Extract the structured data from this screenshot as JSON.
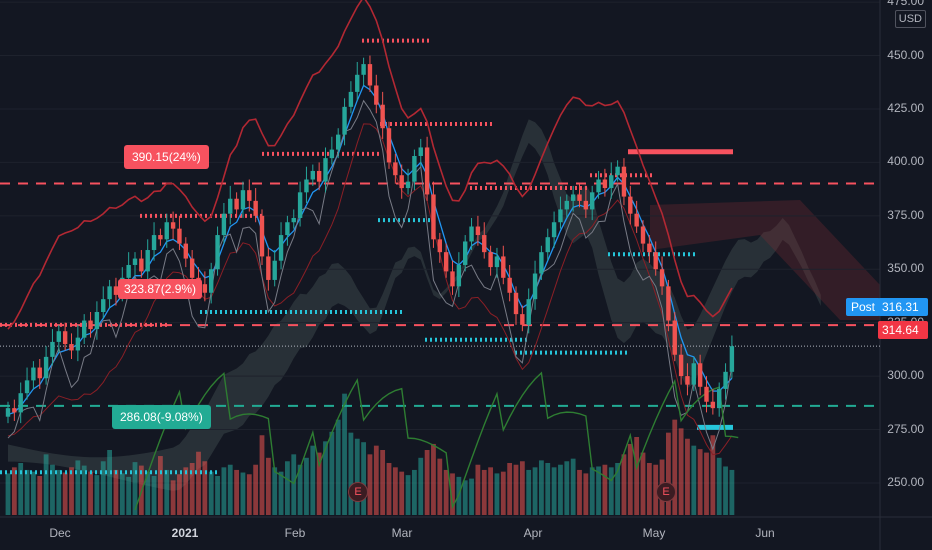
{
  "chart_data": {
    "type": "candlestick",
    "currency": "USD",
    "ylim": [
      235,
      476
    ],
    "y_ticks": [
      "250.00",
      "275.00",
      "300.00",
      "325.00",
      "350.00",
      "375.00",
      "400.00",
      "425.00",
      "450.00",
      "475.00"
    ],
    "x_ticks": [
      {
        "label": "Dec",
        "major": false
      },
      {
        "label": "2021",
        "major": true
      },
      {
        "label": "Feb",
        "major": false
      },
      {
        "label": "Mar",
        "major": false
      },
      {
        "label": "Apr",
        "major": false
      },
      {
        "label": "May",
        "major": false
      },
      {
        "label": "Jun",
        "major": false
      }
    ],
    "price_labels": {
      "post_label": "Post",
      "post_value": "316.31",
      "last_value": "314.64"
    },
    "annotations": {
      "upper_target": "390.15(24%)",
      "mid_target": "323.87(2.9%)",
      "lower_target": "286.08(-9.08%)",
      "earnings_marker": "E"
    },
    "horizontal_levels": [
      390.15,
      323.87,
      316.31,
      286.08
    ],
    "close_series": [
      285,
      283,
      292,
      298,
      304,
      299,
      309,
      316,
      321,
      315,
      312,
      318,
      326,
      322,
      330,
      336,
      342,
      338,
      346,
      352,
      355,
      349,
      359,
      366,
      364,
      372,
      369,
      362,
      355,
      346,
      343,
      339,
      350,
      366,
      376,
      383,
      378,
      387,
      382,
      375,
      356,
      345,
      354,
      366,
      372,
      374,
      386,
      392,
      396,
      391,
      402,
      406,
      413,
      426,
      433,
      441,
      446,
      436,
      427,
      416,
      400,
      394,
      388,
      391,
      403,
      407,
      385,
      364,
      358,
      349,
      342,
      352,
      363,
      370,
      366,
      358,
      351,
      356,
      346,
      339,
      329,
      324,
      336,
      348,
      358,
      365,
      372,
      378,
      382,
      385,
      382,
      378,
      386,
      392,
      388,
      394,
      398,
      384,
      376,
      370,
      362,
      358,
      350,
      342,
      326,
      310,
      300,
      296,
      306,
      295,
      288,
      285,
      294,
      302,
      314
    ],
    "volume_series": [
      48,
      55,
      60,
      52,
      50,
      45,
      70,
      58,
      52,
      49,
      55,
      63,
      57,
      50,
      46,
      62,
      75,
      52,
      48,
      44,
      61,
      57,
      50,
      45,
      68,
      52,
      40,
      47,
      55,
      60,
      73,
      62,
      50,
      45,
      55,
      58,
      52,
      49,
      47,
      58,
      92,
      66,
      55,
      50,
      62,
      70,
      58,
      66,
      80,
      72,
      85,
      96,
      110,
      140,
      95,
      88,
      84,
      70,
      80,
      75,
      60,
      55,
      50,
      46,
      52,
      66,
      75,
      82,
      65,
      52,
      48,
      44,
      40,
      42,
      58,
      52,
      55,
      48,
      50,
      60,
      58,
      62,
      52,
      55,
      63,
      60,
      55,
      58,
      62,
      65,
      52,
      48,
      55,
      56,
      58,
      55,
      60,
      70,
      82,
      90,
      72,
      60,
      58,
      64,
      95,
      110,
      100,
      88,
      80,
      76,
      72,
      92,
      66,
      56,
      52
    ],
    "ma_blue": [
      282,
      283,
      286,
      290,
      294,
      296,
      301,
      306,
      311,
      312,
      313,
      315,
      319,
      320,
      323,
      327,
      332,
      334,
      338,
      343,
      347,
      347,
      351,
      356,
      358,
      363,
      364,
      362,
      359,
      354,
      350,
      346,
      347,
      354,
      362,
      370,
      372,
      378,
      379,
      377,
      368,
      360,
      358,
      361,
      365,
      368,
      374,
      380,
      386,
      388,
      393,
      398,
      404,
      413,
      421,
      429,
      436,
      434,
      430,
      423,
      413,
      405,
      397,
      394,
      397,
      400,
      394,
      382,
      372,
      362,
      354,
      352,
      355,
      361,
      363,
      361,
      358,
      357,
      352,
      346,
      338,
      332,
      334,
      340,
      347,
      354,
      361,
      368,
      374,
      379,
      380,
      379,
      381,
      385,
      386,
      389,
      393,
      390,
      384,
      378,
      371,
      365,
      358,
      351,
      341,
      329,
      318,
      310,
      309,
      304,
      298,
      293,
      293,
      296,
      299
    ]
  }
}
